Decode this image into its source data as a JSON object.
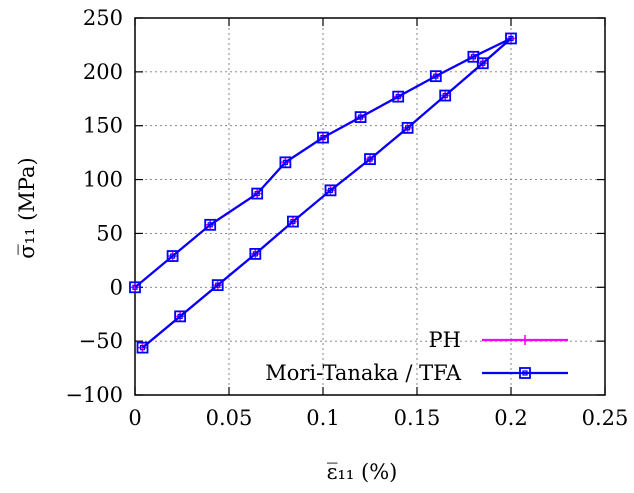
{
  "chart_data": {
    "type": "line",
    "title": "",
    "xlabel": "ε̅₁₁ (%)",
    "ylabel": "σ̅₁₁ (MPa)",
    "xlim": [
      0,
      0.25
    ],
    "ylim": [
      -100,
      250
    ],
    "x_ticks": [
      "0",
      "0.05",
      "0.1",
      "0.15",
      "0.2",
      "0.25"
    ],
    "y_ticks": [
      "−100",
      "−50",
      "0",
      "50",
      "100",
      "150",
      "200",
      "250"
    ],
    "grid": true,
    "legend_position": "bottom-right",
    "series": [
      {
        "name": "PH",
        "color": "#ff00ff",
        "marker": "plus",
        "x": [
          0,
          0.02,
          0.04,
          0.065,
          0.08,
          0.1,
          0.12,
          0.14,
          0.16,
          0.18,
          0.2,
          0.185,
          0.165,
          0.145,
          0.125,
          0.104,
          0.084,
          0.064,
          0.044,
          0.024,
          0.004
        ],
        "y": [
          0,
          29,
          58,
          87,
          116,
          139,
          158,
          177,
          196,
          214,
          231,
          208,
          178,
          148,
          119,
          90,
          61,
          31,
          2,
          -27,
          -56
        ]
      },
      {
        "name": "Mori-Tanaka / TFA",
        "color": "#0000ff",
        "marker": "square",
        "x": [
          0,
          0.02,
          0.04,
          0.065,
          0.08,
          0.1,
          0.12,
          0.14,
          0.16,
          0.18,
          0.2,
          0.185,
          0.165,
          0.145,
          0.125,
          0.104,
          0.084,
          0.064,
          0.044,
          0.024,
          0.004
        ],
        "y": [
          0,
          29,
          58,
          87,
          116,
          139,
          158,
          177,
          196,
          214,
          231,
          208,
          178,
          148,
          119,
          90,
          61,
          31,
          2,
          -27,
          -56
        ]
      }
    ]
  }
}
